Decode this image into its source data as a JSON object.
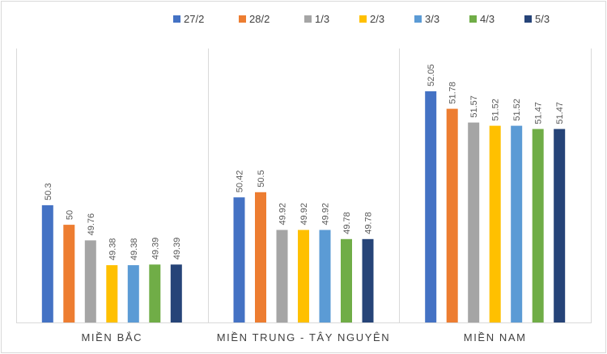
{
  "chart_data": {
    "type": "bar",
    "title": "",
    "xlabel": "",
    "ylabel": "",
    "ylim": [
      48.5,
      52.7
    ],
    "grid": false,
    "legend_position": "top",
    "categories": [
      "MIỀN BẮC",
      "MIỀN TRUNG - TÂY NGUYÊN",
      "MIỀN NAM"
    ],
    "series": [
      {
        "name": "27/2",
        "color": "#4472c4",
        "values": [
          50.3,
          50.42,
          52.05
        ],
        "labels": [
          "50.3",
          "50.42",
          "52.05"
        ]
      },
      {
        "name": "28/2",
        "color": "#ed7d31",
        "values": [
          50,
          50.5,
          51.78
        ],
        "labels": [
          "50",
          "50.5",
          "51.78"
        ]
      },
      {
        "name": "1/3",
        "color": "#a5a5a5",
        "values": [
          49.76,
          49.92,
          51.57
        ],
        "labels": [
          "49.76",
          "49.92",
          "51.57"
        ]
      },
      {
        "name": "2/3",
        "color": "#ffc000",
        "values": [
          49.38,
          49.92,
          51.52
        ],
        "labels": [
          "49.38",
          "49.92",
          "51.52"
        ]
      },
      {
        "name": "3/3",
        "color": "#5b9bd5",
        "values": [
          49.38,
          49.92,
          51.52
        ],
        "labels": [
          "49.38",
          "49.92",
          "51.52"
        ]
      },
      {
        "name": "4/3",
        "color": "#70ad47",
        "values": [
          49.39,
          49.78,
          51.47
        ],
        "labels": [
          "49.39",
          "49.78",
          "51.47"
        ]
      },
      {
        "name": "5/3",
        "color": "#264478",
        "values": [
          49.39,
          49.78,
          51.47
        ],
        "labels": [
          "49.39",
          "49.78",
          "51.47"
        ]
      }
    ]
  }
}
